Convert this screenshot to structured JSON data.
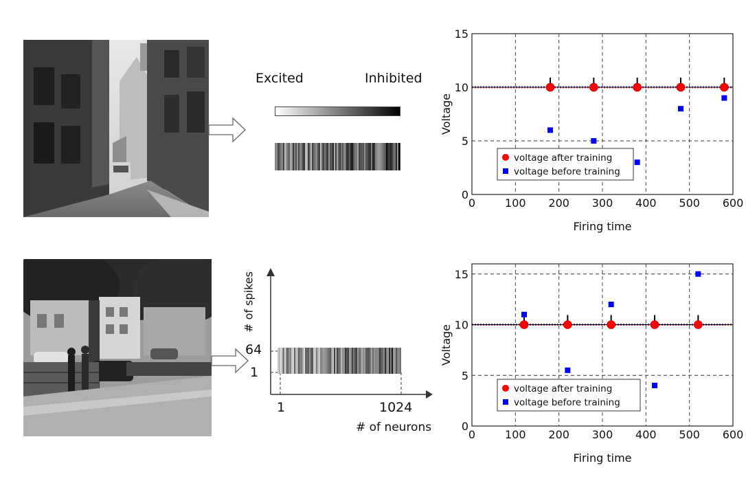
{
  "encoding": {
    "excited_label": "Excited",
    "inhibited_label": "Inhibited"
  },
  "raster": {
    "y_axis_label": "# of spikes",
    "x_axis_label": "# of neurons",
    "y_tick_top": "64",
    "y_tick_bottom": "1",
    "x_tick_left": "1",
    "x_tick_right": "1024"
  },
  "chart_data": [
    {
      "type": "scatter",
      "xlabel": "Firing time",
      "ylabel": "Voltage",
      "xlim": [
        0,
        600
      ],
      "ylim": [
        0,
        15
      ],
      "xticks": [
        0,
        100,
        200,
        300,
        400,
        500,
        600
      ],
      "yticks": [
        0,
        5,
        10,
        15
      ],
      "grid": true,
      "threshold": 10,
      "legend_position": "lower-center",
      "series": [
        {
          "name": "voltage after training",
          "color": "#ff0000",
          "marker": "circle",
          "x": [
            180,
            280,
            380,
            480,
            580
          ],
          "y": [
            10,
            10,
            10,
            10,
            10
          ]
        },
        {
          "name": "voltage before training",
          "color": "#0000ff",
          "marker": "square",
          "x": [
            180,
            280,
            380,
            480,
            580
          ],
          "y": [
            6,
            5,
            3,
            8,
            9
          ]
        }
      ]
    },
    {
      "type": "scatter",
      "xlabel": "Firing time",
      "ylabel": "Voltage",
      "xlim": [
        0,
        600
      ],
      "ylim": [
        0,
        16
      ],
      "xticks": [
        0,
        100,
        200,
        300,
        400,
        500,
        600
      ],
      "yticks": [
        0,
        5,
        10,
        15
      ],
      "grid": true,
      "threshold": 10,
      "legend_position": "lower-center",
      "series": [
        {
          "name": "voltage after training",
          "color": "#ff0000",
          "marker": "circle",
          "x": [
            120,
            220,
            320,
            420,
            520
          ],
          "y": [
            10,
            10,
            10,
            10,
            10
          ]
        },
        {
          "name": "voltage before training",
          "color": "#0000ff",
          "marker": "square",
          "x": [
            120,
            220,
            320,
            420,
            520
          ],
          "y": [
            11,
            5.5,
            12,
            4,
            15
          ]
        }
      ]
    }
  ]
}
